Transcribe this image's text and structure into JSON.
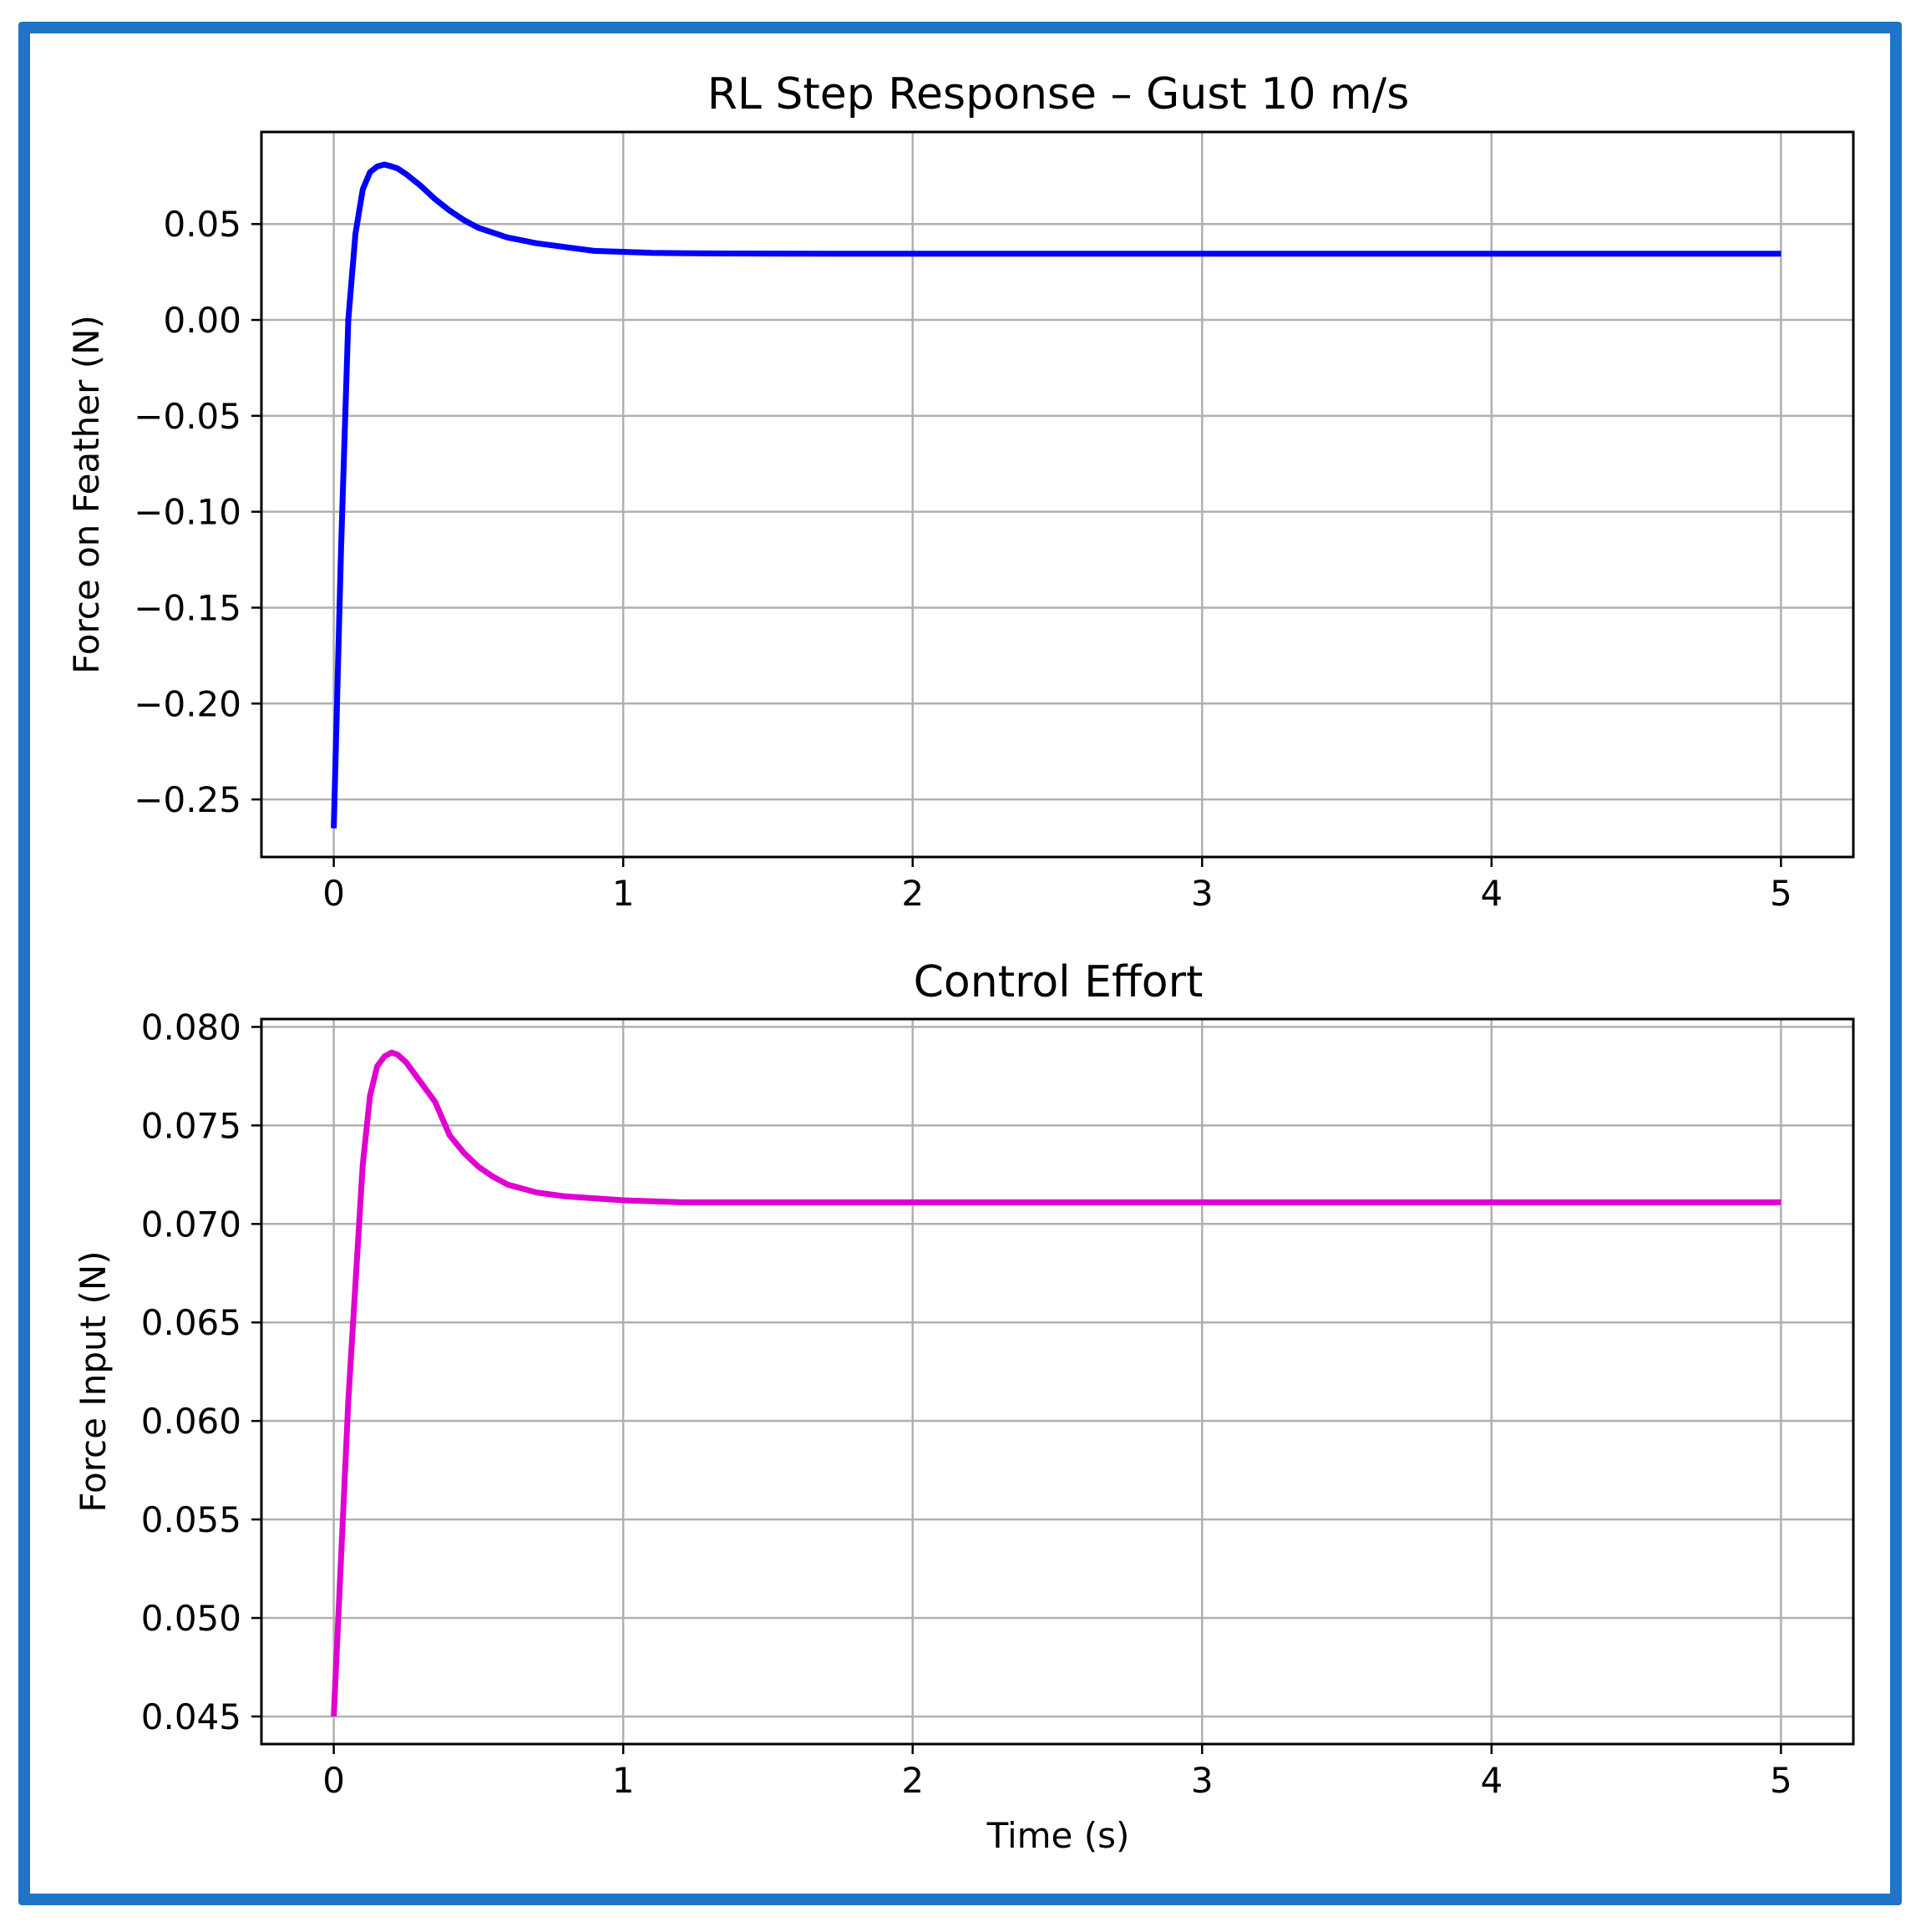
{
  "chart_data": [
    {
      "type": "line",
      "title": "RL Step Response – Gust 10 m/s",
      "xlabel": "",
      "ylabel": "Force on Feather (N)",
      "xlim": [
        -0.25,
        5.25
      ],
      "ylim": [
        -0.28,
        0.098
      ],
      "grid": true,
      "x_ticks": [
        0,
        1,
        2,
        3,
        4,
        5
      ],
      "x_tick_labels": [
        "0",
        "1",
        "2",
        "3",
        "4",
        "5"
      ],
      "y_ticks": [
        0.05,
        0.0,
        -0.05,
        -0.1,
        -0.15,
        -0.2,
        -0.25
      ],
      "y_tick_labels": [
        "0.05",
        "0.00",
        "−0.05",
        "−0.10",
        "−0.15",
        "−0.20",
        "−0.25"
      ],
      "series": [
        {
          "color": "#0000ff",
          "x": [
            0,
            0.025,
            0.05,
            0.075,
            0.1,
            0.125,
            0.15,
            0.175,
            0.2,
            0.22,
            0.25,
            0.3,
            0.35,
            0.4,
            0.45,
            0.5,
            0.6,
            0.7,
            0.8,
            0.9,
            1.0,
            1.1,
            1.2,
            1.3,
            1.5,
            1.75,
            2.0,
            2.5,
            3.0,
            3.5,
            4.0,
            4.5,
            5.0
          ],
          "y": [
            -0.265,
            -0.12,
            0.0,
            0.045,
            0.068,
            0.077,
            0.08,
            0.081,
            0.08,
            0.079,
            0.076,
            0.07,
            0.063,
            0.057,
            0.052,
            0.048,
            0.043,
            0.04,
            0.038,
            0.036,
            0.0355,
            0.035,
            0.0348,
            0.0347,
            0.0346,
            0.0345,
            0.0345,
            0.0345,
            0.0345,
            0.0345,
            0.0345,
            0.0345,
            0.0345
          ]
        }
      ]
    },
    {
      "type": "line",
      "title": "Control Effort",
      "xlabel": "Time (s)",
      "ylabel": "Force Input (N)",
      "xlim": [
        -0.25,
        5.25
      ],
      "ylim": [
        0.0436,
        0.0804
      ],
      "grid": true,
      "x_ticks": [
        0,
        1,
        2,
        3,
        4,
        5
      ],
      "x_tick_labels": [
        "0",
        "1",
        "2",
        "3",
        "4",
        "5"
      ],
      "y_ticks": [
        0.08,
        0.075,
        0.07,
        0.065,
        0.06,
        0.055,
        0.05,
        0.045
      ],
      "y_tick_labels": [
        "0.080",
        "0.075",
        "0.070",
        "0.065",
        "0.060",
        "0.055",
        "0.050",
        "0.045"
      ],
      "series": [
        {
          "color": "#e000d0",
          "x": [
            0,
            0.05,
            0.1,
            0.125,
            0.15,
            0.175,
            0.2,
            0.22,
            0.25,
            0.3,
            0.35,
            0.4,
            0.45,
            0.5,
            0.55,
            0.6,
            0.7,
            0.8,
            0.9,
            1.0,
            1.2,
            1.5,
            2.0,
            3.0,
            4.0,
            5.0
          ],
          "y": [
            0.045,
            0.061,
            0.073,
            0.0765,
            0.078,
            0.0785,
            0.0787,
            0.0786,
            0.0782,
            0.0772,
            0.0762,
            0.0745,
            0.0736,
            0.0729,
            0.0724,
            0.072,
            0.0716,
            0.0714,
            0.0713,
            0.0712,
            0.0711,
            0.0711,
            0.0711,
            0.0711,
            0.0711,
            0.0711
          ]
        }
      ]
    }
  ]
}
